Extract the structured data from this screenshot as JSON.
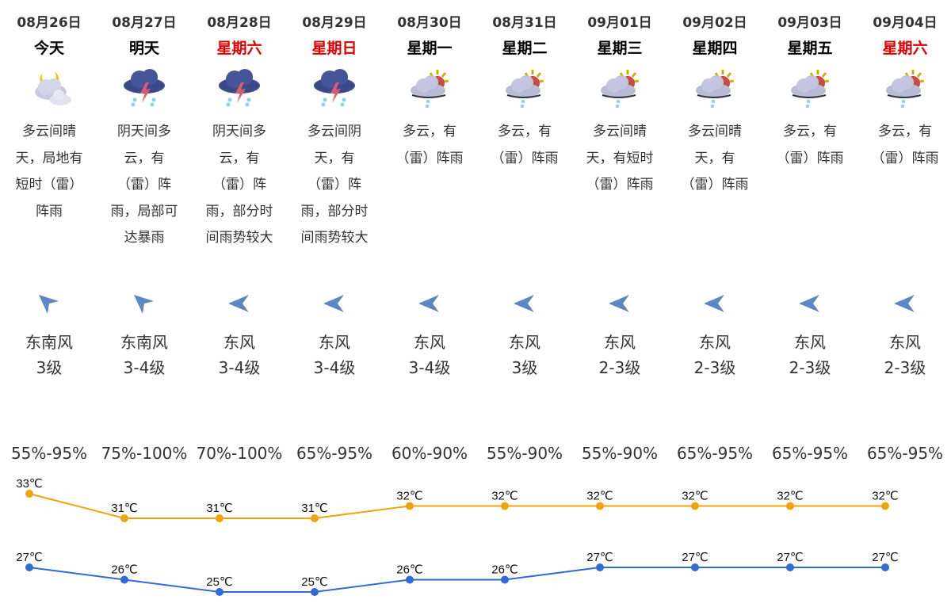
{
  "days": [
    {
      "date": "08月26日",
      "day": "今天",
      "weekend": false,
      "icon": "moon-cloud-icon",
      "desc": "多云间晴天，局地有短时（雷）阵雨",
      "wind_dir": "东南风",
      "wind_dir_icon": "southeast",
      "wind_level": "3级",
      "humidity": "55%-95%"
    },
    {
      "date": "08月27日",
      "day": "明天",
      "weekend": false,
      "icon": "thunderstorm-icon",
      "desc": "阴天间多云，有（雷）阵雨，局部可达暴雨",
      "wind_dir": "东南风",
      "wind_dir_icon": "southeast",
      "wind_level": "3-4级",
      "humidity": "75%-100%"
    },
    {
      "date": "08月28日",
      "day": "星期六",
      "weekend": true,
      "icon": "thunderstorm-icon",
      "desc": "阴天间多云，有（雷）阵雨，部分时间雨势较大",
      "wind_dir": "东风",
      "wind_dir_icon": "east",
      "wind_level": "3-4级",
      "humidity": "70%-100%"
    },
    {
      "date": "08月29日",
      "day": "星期日",
      "weekend": true,
      "icon": "thunderstorm-icon",
      "desc": "多云间阴天，有（雷）阵雨，部分时间雨势较大",
      "wind_dir": "东风",
      "wind_dir_icon": "east",
      "wind_level": "3-4级",
      "humidity": "65%-95%"
    },
    {
      "date": "08月30日",
      "day": "星期一",
      "weekend": false,
      "icon": "sun-cloud-rain-icon",
      "desc": "多云，有（雷）阵雨",
      "wind_dir": "东风",
      "wind_dir_icon": "east",
      "wind_level": "3-4级",
      "humidity": "60%-90%"
    },
    {
      "date": "08月31日",
      "day": "星期二",
      "weekend": false,
      "icon": "sun-cloud-rain-icon",
      "desc": "多云，有（雷）阵雨",
      "wind_dir": "东风",
      "wind_dir_icon": "east",
      "wind_level": "3级",
      "humidity": "55%-90%"
    },
    {
      "date": "09月01日",
      "day": "星期三",
      "weekend": false,
      "icon": "sun-cloud-rain-icon",
      "desc": "多云间晴天，有短时（雷）阵雨",
      "wind_dir": "东风",
      "wind_dir_icon": "east",
      "wind_level": "2-3级",
      "humidity": "55%-90%"
    },
    {
      "date": "09月02日",
      "day": "星期四",
      "weekend": false,
      "icon": "sun-cloud-rain-icon",
      "desc": "多云间晴天，有（雷）阵雨",
      "wind_dir": "东风",
      "wind_dir_icon": "east",
      "wind_level": "2-3级",
      "humidity": "65%-95%"
    },
    {
      "date": "09月03日",
      "day": "星期五",
      "weekend": false,
      "icon": "sun-cloud-rain-icon",
      "desc": "多云，有（雷）阵雨",
      "wind_dir": "东风",
      "wind_dir_icon": "east",
      "wind_level": "2-3级",
      "humidity": "65%-95%"
    },
    {
      "date": "09月04日",
      "day": "星期六",
      "weekend": true,
      "icon": "sun-cloud-rain-icon",
      "desc": "多云，有（雷）阵雨",
      "wind_dir": "东风",
      "wind_dir_icon": "east",
      "wind_level": "2-3级",
      "humidity": "65%-95%"
    }
  ],
  "colors": {
    "high": "#f0a30a",
    "low": "#2f6bd6",
    "weekend": "#e00000",
    "arrow": "#5b88c4"
  },
  "chart_data": {
    "type": "line",
    "categories": [
      "08月26日",
      "08月27日",
      "08月28日",
      "08月29日",
      "08月30日",
      "08月31日",
      "09月01日",
      "09月02日",
      "09月03日",
      "09月04日"
    ],
    "unit": "℃",
    "series": [
      {
        "values": [
          33,
          31,
          31,
          31,
          32,
          32,
          32,
          32,
          32,
          32
        ]
      },
      {
        "values": [
          27,
          26,
          25,
          25,
          26,
          26,
          27,
          27,
          27,
          27
        ]
      }
    ]
  }
}
